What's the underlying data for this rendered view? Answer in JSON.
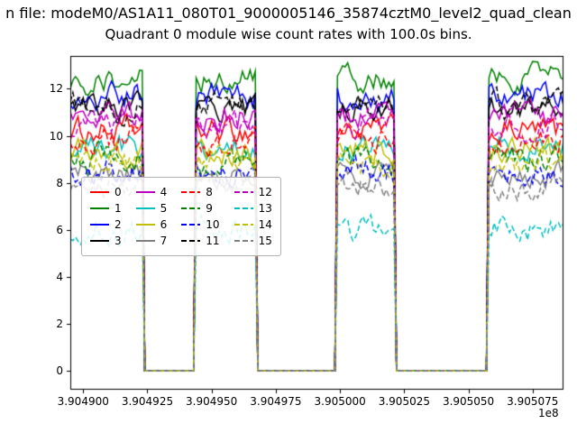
{
  "figure": {
    "background": "#ffffff"
  },
  "chart_data": {
    "type": "line",
    "suptitle": "n file: modeM0/AS1A11_080T01_9000005146_35874cztM0_level2_quad_clean",
    "title": "Quadrant 0 module wise count rates with 100.0s bins.",
    "xlabel": "",
    "ylabel": "",
    "x_offset_label": "1e8",
    "xlim": [
      390489500,
      390508700
    ],
    "ylim": [
      -0.8,
      13.4
    ],
    "yticks": [
      0,
      2,
      4,
      6,
      8,
      10,
      12
    ],
    "xticks": [
      {
        "value": 390490000,
        "label": "3.904900"
      },
      {
        "value": 390492500,
        "label": "3.904925"
      },
      {
        "value": 390495000,
        "label": "3.904950"
      },
      {
        "value": 390497500,
        "label": "3.904975"
      },
      {
        "value": 390500000,
        "label": "3.905000"
      },
      {
        "value": 390502500,
        "label": "3.905025"
      },
      {
        "value": 390505000,
        "label": "3.905050"
      },
      {
        "value": 390507500,
        "label": "3.905075"
      }
    ],
    "bin_seconds": 100,
    "gti_segments": [
      [
        390489500,
        390492350
      ],
      [
        390494400,
        390496700
      ],
      [
        390499900,
        390502100
      ],
      [
        390505800,
        390508700
      ]
    ],
    "off_value": 0,
    "noise_amplitude": 0.45,
    "series": [
      {
        "name": "0",
        "color": "#ff0000",
        "style": "solid",
        "mean": 10.2
      },
      {
        "name": "1",
        "color": "#008000",
        "style": "solid",
        "mean": 12.4
      },
      {
        "name": "2",
        "color": "#0000ff",
        "style": "solid",
        "mean": 11.7
      },
      {
        "name": "3",
        "color": "#000000",
        "style": "solid",
        "mean": 11.1
      },
      {
        "name": "4",
        "color": "#bf00bf",
        "style": "solid",
        "mean": 10.9
      },
      {
        "name": "5",
        "color": "#00bfbf",
        "style": "solid",
        "mean": 9.5
      },
      {
        "name": "6",
        "color": "#bfbf00",
        "style": "solid",
        "mean": 9.3
      },
      {
        "name": "7",
        "color": "#808080",
        "style": "solid",
        "mean": 8.3
      },
      {
        "name": "8",
        "color": "#ff0000",
        "style": "dashed",
        "mean": 9.8
      },
      {
        "name": "9",
        "color": "#008000",
        "style": "dashed",
        "mean": 9.0
      },
      {
        "name": "10",
        "color": "#0000ff",
        "style": "dashed",
        "mean": 8.5
      },
      {
        "name": "11",
        "color": "#000000",
        "style": "dashed",
        "mean": 11.3
      },
      {
        "name": "12",
        "color": "#bf00bf",
        "style": "dashed",
        "mean": 10.5
      },
      {
        "name": "13",
        "color": "#00bfbf",
        "style": "dashed",
        "mean": 6.0
      },
      {
        "name": "14",
        "color": "#bfbf00",
        "style": "dashed",
        "mean": 8.9
      },
      {
        "name": "15",
        "color": "#808080",
        "style": "dashed",
        "mean": 7.9
      }
    ],
    "legend": {
      "columns": 4,
      "rows": 4,
      "order": "column-major",
      "position": "center-left"
    }
  }
}
